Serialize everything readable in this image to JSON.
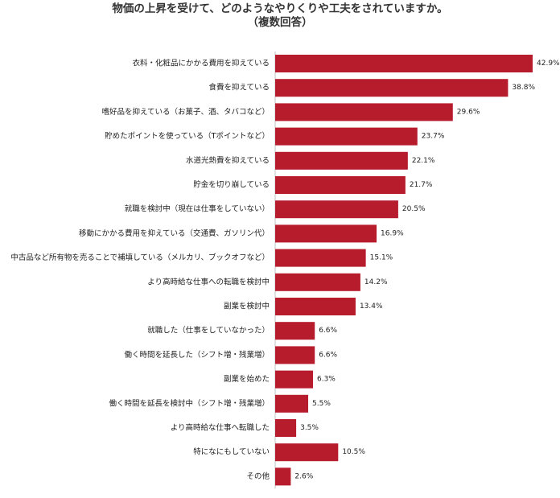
{
  "chart_data": {
    "type": "bar",
    "orientation": "horizontal",
    "title": "物価の上昇を受けて、どのようなやりくりや工夫をされていますか。",
    "subtitle": "（複数回答）",
    "xlabel": "",
    "ylabel": "",
    "xlim": [
      0,
      42.9
    ],
    "grid": false,
    "legend": "none",
    "bar_color": "#b71c2c",
    "unit": "%",
    "categories": [
      "衣料・化粧品にかかる費用を抑えている",
      "食費を抑えている",
      "嗜好品を抑えている（お菓子、酒、タバコなど）",
      "貯めたポイントを使っている（Tポイントなど）",
      "水道光熱費を抑えている",
      "貯金を切り崩している",
      "就職を検討中（現在は仕事をしていない）",
      "移動にかかる費用を抑えている（交通費、ガソリン代）",
      "中古品など所有物を売ることで補填している（メルカリ、ブックオフなど）",
      "より高時給な仕事への転職を検討中",
      "副業を検討中",
      "就職した（仕事をしていなかった）",
      "働く時間を延長した（シフト増・残業増）",
      "副業を始めた",
      "働く時間を延長を検討中（シフト増・残業増）",
      "より高時給な仕事へ転職した",
      "特になにもしていない",
      "その他"
    ],
    "values": [
      42.9,
      38.8,
      29.6,
      23.7,
      22.1,
      21.7,
      20.5,
      16.9,
      15.1,
      14.2,
      13.4,
      6.6,
      6.6,
      6.3,
      5.5,
      3.5,
      10.5,
      2.6
    ],
    "value_labels": [
      "42.9%",
      "38.8%",
      "29.6%",
      "23.7%",
      "22.1%",
      "21.7%",
      "20.5%",
      "16.9%",
      "15.1%",
      "14.2%",
      "13.4%",
      "6.6%",
      "6.6%",
      "6.3%",
      "5.5%",
      "3.5%",
      "10.5%",
      "2.6%"
    ]
  }
}
